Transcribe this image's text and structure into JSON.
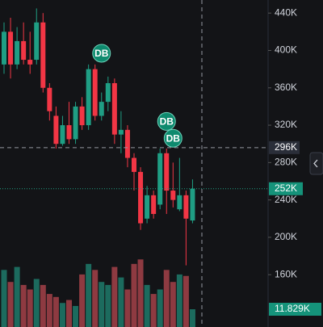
{
  "chart_data": {
    "type": "candlestick",
    "open": [
      385,
      420,
      385,
      410,
      390,
      390,
      430,
      360,
      330,
      300,
      320,
      305,
      340,
      320,
      380,
      330,
      345,
      365,
      310,
      315,
      285,
      270,
      220,
      245,
      235,
      290,
      250,
      230,
      245,
      218
    ],
    "high": [
      430,
      435,
      425,
      430,
      420,
      445,
      440,
      365,
      340,
      330,
      345,
      345,
      350,
      385,
      385,
      355,
      372,
      370,
      335,
      320,
      290,
      275,
      255,
      250,
      295,
      295,
      280,
      285,
      250,
      262
    ],
    "low": [
      375,
      370,
      380,
      385,
      375,
      385,
      355,
      325,
      295,
      298,
      300,
      300,
      315,
      315,
      325,
      325,
      335,
      300,
      290,
      275,
      250,
      208,
      215,
      220,
      230,
      225,
      232,
      228,
      170,
      215
    ],
    "close": [
      420,
      385,
      410,
      390,
      385,
      430,
      360,
      335,
      300,
      320,
      305,
      340,
      320,
      380,
      330,
      345,
      365,
      310,
      315,
      285,
      270,
      215,
      245,
      225,
      290,
      250,
      240,
      245,
      220,
      252
    ],
    "volumes": [
      38,
      30,
      40,
      28,
      25,
      32,
      28,
      22,
      20,
      16,
      18,
      14,
      35,
      42,
      38,
      30,
      28,
      40,
      33,
      25,
      42,
      45,
      28,
      22,
      25,
      38,
      30,
      35,
      34,
      11.829
    ],
    "up_color": "#1f9e84",
    "down_color": "#f23645",
    "up_volume_color": "#1c6b5e",
    "down_volume_color": "#8e3a41",
    "ylim": [
      104,
      454
    ],
    "yticks": [
      {
        "value": 160,
        "label": "160K"
      },
      {
        "value": 200,
        "label": "200K"
      },
      {
        "value": 240,
        "label": "240K"
      },
      {
        "value": 280,
        "label": "280K"
      },
      {
        "value": 320,
        "label": "320K"
      },
      {
        "value": 360,
        "label": "360K"
      },
      {
        "value": 400,
        "label": "400K"
      },
      {
        "value": 440,
        "label": "440K"
      }
    ],
    "crosshair": {
      "value": 296,
      "label": "296K"
    },
    "last_price": {
      "value": 252,
      "label": "252K"
    },
    "current_volume": {
      "value": 11.829,
      "label": "11.829K"
    },
    "markers": [
      {
        "label": "DB",
        "index": 15,
        "price": 397
      },
      {
        "label": "DB",
        "index": 25,
        "price": 324
      },
      {
        "label": "DB",
        "index": 26,
        "price": 306
      }
    ]
  }
}
